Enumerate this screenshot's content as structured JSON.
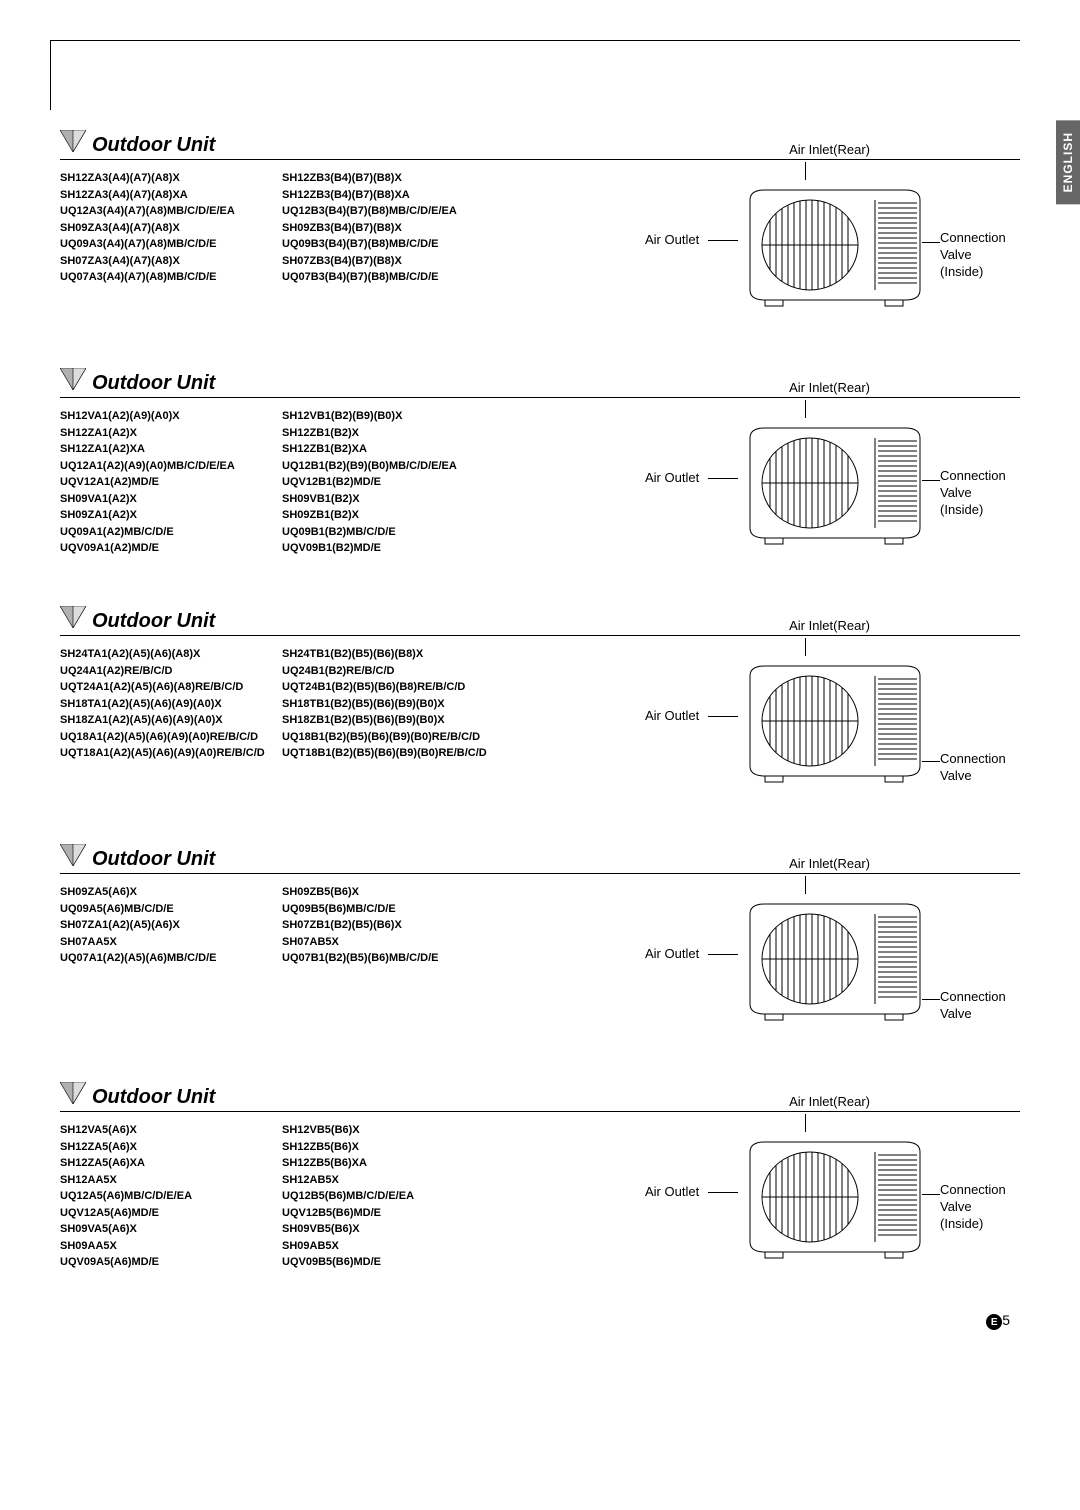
{
  "lang_tab": "ENGLISH",
  "section_title": "Outdoor Unit",
  "diagram_labels": {
    "air_inlet": "Air Inlet(Rear)",
    "air_outlet": "Air Outlet",
    "conn_valve": "Connection Valve",
    "conn_valve_inside": "Connection Valve (Inside)"
  },
  "sections": [
    {
      "valve_inside": true,
      "show_header_inlet": true,
      "cols": [
        [
          "SH12ZA3(A4)(A7)(A8)X",
          "SH12ZA3(A4)(A7)(A8)XA",
          "UQ12A3(A4)(A7)(A8)MB/C/D/E/EA",
          "SH09ZA3(A4)(A7)(A8)X",
          "UQ09A3(A4)(A7)(A8)MB/C/D/E",
          "SH07ZA3(A4)(A7)(A8)X",
          "UQ07A3(A4)(A7)(A8)MB/C/D/E"
        ],
        [
          "SH12ZB3(B4)(B7)(B8)X",
          "SH12ZB3(B4)(B7)(B8)XA",
          "UQ12B3(B4)(B7)(B8)MB/C/D/E/EA",
          "SH09ZB3(B4)(B7)(B8)X",
          "UQ09B3(B4)(B7)(B8)MB/C/D/E",
          "SH07ZB3(B4)(B7)(B8)X",
          "UQ07B3(B4)(B7)(B8)MB/C/D/E"
        ]
      ]
    },
    {
      "valve_inside": true,
      "show_header_inlet": true,
      "cols": [
        [
          "SH12VA1(A2)(A9)(A0)X",
          "SH12ZA1(A2)X",
          "SH12ZA1(A2)XA",
          "UQ12A1(A2)(A9)(A0)MB/C/D/E/EA",
          "UQV12A1(A2)MD/E",
          "SH09VA1(A2)X",
          "SH09ZA1(A2)X",
          "UQ09A1(A2)MB/C/D/E",
          "UQV09A1(A2)MD/E"
        ],
        [
          "SH12VB1(B2)(B9)(B0)X",
          "SH12ZB1(B2)X",
          "SH12ZB1(B2)XA",
          "UQ12B1(B2)(B9)(B0)MB/C/D/E/EA",
          "UQV12B1(B2)MD/E",
          "SH09VB1(B2)X",
          "SH09ZB1(B2)X",
          "UQ09B1(B2)MB/C/D/E",
          "UQV09B1(B2)MD/E"
        ]
      ]
    },
    {
      "valve_inside": false,
      "show_header_inlet": true,
      "cols": [
        [
          "SH24TA1(A2)(A5)(A6)(A8)X",
          "UQ24A1(A2)RE/B/C/D",
          "UQT24A1(A2)(A5)(A6)(A8)RE/B/C/D",
          "SH18TA1(A2)(A5)(A6)(A9)(A0)X",
          "SH18ZA1(A2)(A5)(A6)(A9)(A0)X",
          "UQ18A1(A2)(A5)(A6)(A9)(A0)RE/B/C/D",
          "UQT18A1(A2)(A5)(A6)(A9)(A0)RE/B/C/D"
        ],
        [
          "SH24TB1(B2)(B5)(B6)(B8)X",
          "UQ24B1(B2)RE/B/C/D",
          "UQT24B1(B2)(B5)(B6)(B8)RE/B/C/D",
          "SH18TB1(B2)(B5)(B6)(B9)(B0)X",
          "SH18ZB1(B2)(B5)(B6)(B9)(B0)X",
          "UQ18B1(B2)(B5)(B6)(B9)(B0)RE/B/C/D",
          "UQT18B1(B2)(B5)(B6)(B9)(B0)RE/B/C/D"
        ]
      ]
    },
    {
      "valve_inside": false,
      "show_header_inlet": true,
      "cols": [
        [
          "SH09ZA5(A6)X",
          "UQ09A5(A6)MB/C/D/E",
          "SH07ZA1(A2)(A5)(A6)X",
          "SH07AA5X",
          "UQ07A1(A2)(A5)(A6)MB/C/D/E"
        ],
        [
          "SH09ZB5(B6)X",
          "UQ09B5(B6)MB/C/D/E",
          "SH07ZB1(B2)(B5)(B6)X",
          "SH07AB5X",
          "UQ07B1(B2)(B5)(B6)MB/C/D/E"
        ]
      ]
    },
    {
      "valve_inside": true,
      "show_header_inlet": true,
      "cols": [
        [
          "SH12VA5(A6)X",
          "SH12ZA5(A6)X",
          "SH12ZA5(A6)XA",
          "SH12AA5X",
          "UQ12A5(A6)MB/C/D/E/EA",
          "UQV12A5(A6)MD/E",
          "SH09VA5(A6)X",
          "SH09AA5X",
          "UQV09A5(A6)MD/E"
        ],
        [
          "SH12VB5(B6)X",
          "SH12ZB5(B6)X",
          "SH12ZB5(B6)XA",
          "SH12AB5X",
          "UQ12B5(B6)MB/C/D/E/EA",
          "UQV12B5(B6)MD/E",
          "SH09VB5(B6)X",
          "SH09AB5X",
          "UQV09B5(B6)MD/E"
        ]
      ]
    }
  ],
  "page_number_prefix": "E",
  "page_number": "5",
  "colors": {
    "triangle_fill": "#b0b0b0",
    "triangle_stroke": "#000000"
  }
}
